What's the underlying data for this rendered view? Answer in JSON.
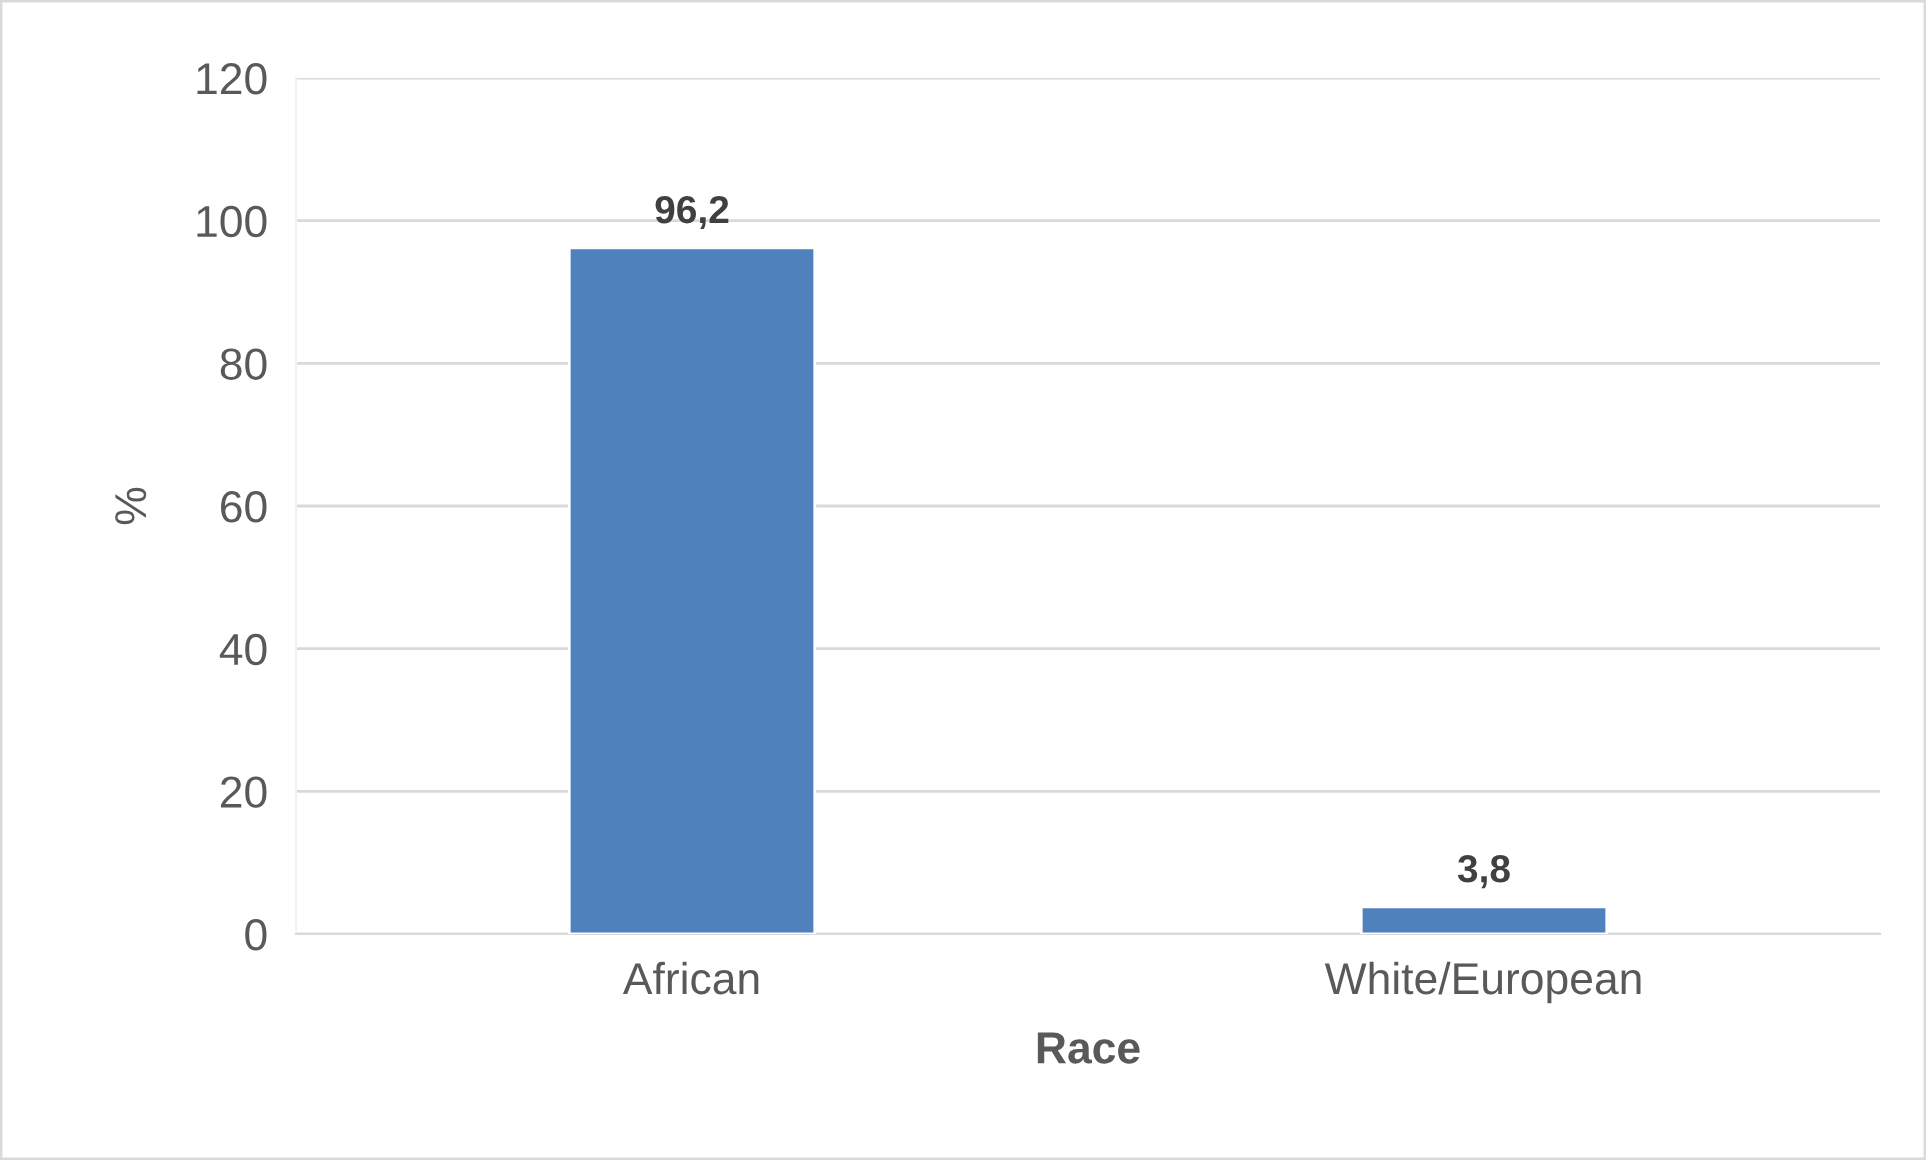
{
  "chart_data": {
    "type": "bar",
    "xlabel": "Race",
    "ylabel": "%",
    "categories": [
      "African",
      "White/European"
    ],
    "values": [
      96.2,
      3.8
    ],
    "value_labels": [
      "96,2",
      "3,8"
    ],
    "color": "#4f81bd",
    "ylim": [
      0,
      120
    ],
    "yticks": [
      0,
      20,
      40,
      60,
      80,
      100,
      120
    ],
    "grid": "y",
    "legend": false
  }
}
